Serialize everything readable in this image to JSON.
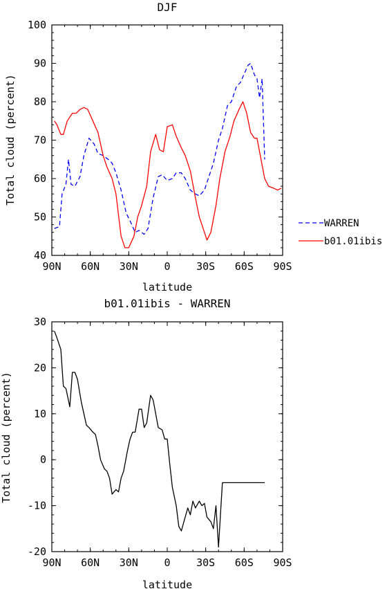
{
  "chart_data": [
    {
      "type": "line",
      "title": "DJF",
      "xlabel": "latitude",
      "ylabel": "Total cloud (percent)",
      "xlim": [
        90,
        -90
      ],
      "ylim": [
        40,
        100
      ],
      "x_ticks": [
        {
          "value": 90,
          "label": "90N"
        },
        {
          "value": 60,
          "label": "60N"
        },
        {
          "value": 30,
          "label": "30N"
        },
        {
          "value": 0,
          "label": "0"
        },
        {
          "value": -30,
          "label": "30S"
        },
        {
          "value": -60,
          "label": "60S"
        },
        {
          "value": -90,
          "label": "90S"
        }
      ],
      "y_ticks": [
        40,
        50,
        60,
        70,
        80,
        90,
        100
      ],
      "legend": "outside-right",
      "series": [
        {
          "name": "WARREN",
          "color": "#0000ff",
          "style": "dashed",
          "x": [
            88,
            84,
            82,
            79,
            77,
            75,
            72,
            68,
            65,
            61,
            57,
            54,
            50,
            46,
            43,
            40,
            36,
            32,
            29,
            25,
            22,
            18,
            15,
            11,
            7,
            4,
            0,
            -4,
            -7,
            -11,
            -14,
            -18,
            -22,
            -25,
            -29,
            -32,
            -36,
            -40,
            -43,
            -47,
            -50,
            -54,
            -57,
            -61,
            -63,
            -65,
            -68,
            -70,
            -72,
            -74,
            -76
          ],
          "y": [
            47,
            47.5,
            56,
            58.5,
            65,
            58.5,
            58,
            60.5,
            66,
            70.5,
            69,
            66.5,
            66,
            65,
            64,
            61.5,
            57,
            51,
            49,
            46,
            46.5,
            45.5,
            47,
            55,
            60.5,
            61,
            59.5,
            60,
            61.5,
            61.5,
            60,
            57,
            56,
            55.5,
            57,
            60,
            64,
            70,
            73,
            79,
            80,
            84,
            85,
            88,
            89.5,
            90,
            87,
            86,
            81,
            86,
            65
          ]
        },
        {
          "name": "b01.01ibis",
          "color": "#ff0000",
          "style": "solid",
          "x": [
            88,
            86,
            83,
            81,
            78,
            74,
            71,
            68,
            65,
            62,
            58,
            54,
            50,
            47,
            43,
            40,
            36,
            33,
            30,
            26,
            23,
            20,
            16,
            13,
            9,
            6,
            3,
            0,
            -4,
            -7,
            -11,
            -14,
            -18,
            -22,
            -25,
            -29,
            -31,
            -34,
            -38,
            -41,
            -45,
            -49,
            -52,
            -56,
            -59,
            -62,
            -65,
            -68,
            -70,
            -72,
            -76,
            -79,
            -83,
            -86,
            -89
          ],
          "y": [
            75,
            74,
            71.5,
            71.5,
            75,
            77,
            77,
            78,
            78.5,
            78,
            75,
            72,
            66,
            63,
            60,
            56,
            45,
            42,
            42,
            45,
            50,
            53,
            58,
            67,
            71.5,
            67.5,
            67,
            73.5,
            74,
            71,
            68,
            66,
            62,
            55,
            50,
            46,
            44,
            46,
            53,
            60,
            67,
            71,
            75,
            78,
            80,
            77,
            72,
            70.5,
            70.5,
            67,
            60,
            58,
            57.5,
            57,
            57.5
          ]
        }
      ]
    },
    {
      "type": "line",
      "title": "b01.01ibis - WARREN",
      "xlabel": "latitude",
      "ylabel": "Total cloud (percent)",
      "xlim": [
        90,
        -90
      ],
      "ylim": [
        -20,
        30
      ],
      "x_ticks": [
        {
          "value": 90,
          "label": "90N"
        },
        {
          "value": 60,
          "label": "60N"
        },
        {
          "value": 30,
          "label": "30N"
        },
        {
          "value": 0,
          "label": "0"
        },
        {
          "value": -30,
          "label": "30S"
        },
        {
          "value": -60,
          "label": "60S"
        },
        {
          "value": -90,
          "label": "90S"
        }
      ],
      "y_ticks": [
        -20,
        -10,
        0,
        10,
        20,
        30
      ],
      "series": [
        {
          "color": "#000000",
          "style": "solid",
          "x": [
            88,
            86,
            83,
            81,
            79,
            76,
            74,
            72,
            70,
            67,
            65,
            63,
            61,
            58,
            56,
            54,
            52,
            49,
            47,
            45,
            43,
            40,
            38,
            36,
            34,
            31,
            29,
            27,
            25,
            22,
            20,
            18,
            16,
            13,
            11,
            9,
            7,
            4,
            2,
            0,
            -2,
            -4,
            -7,
            -9,
            -11,
            -13,
            -16,
            -18,
            -20,
            -22,
            -25,
            -27,
            -29,
            -31,
            -34,
            -36,
            -38,
            -40,
            -43,
            -45,
            -47,
            -49,
            -52,
            -54,
            -56,
            -58,
            -61,
            -63,
            -65,
            -67,
            -70,
            -72,
            -74,
            -76
          ],
          "y": [
            28,
            26.5,
            24,
            16,
            15.5,
            11.5,
            19,
            19,
            17.5,
            12.5,
            10,
            7.5,
            7,
            6,
            5.5,
            3,
            0,
            -2,
            -2.5,
            -4,
            -7.5,
            -6.5,
            -7,
            -4,
            -2.5,
            2,
            4.5,
            6,
            6,
            11,
            11,
            7,
            8,
            14,
            13,
            10,
            7,
            6.5,
            4.5,
            4.5,
            -1,
            -6,
            -10,
            -14.5,
            -15.5,
            -13.5,
            -10.5,
            -12,
            -9,
            -10.5,
            -9,
            -10,
            -9.5,
            -12.5,
            -13.5,
            -15,
            -10,
            -19,
            -5,
            -5,
            -5,
            -5,
            -5,
            -5,
            -5,
            -5,
            -5,
            -5,
            -5,
            -5,
            -5,
            -5,
            -5,
            -5
          ]
        }
      ]
    }
  ]
}
